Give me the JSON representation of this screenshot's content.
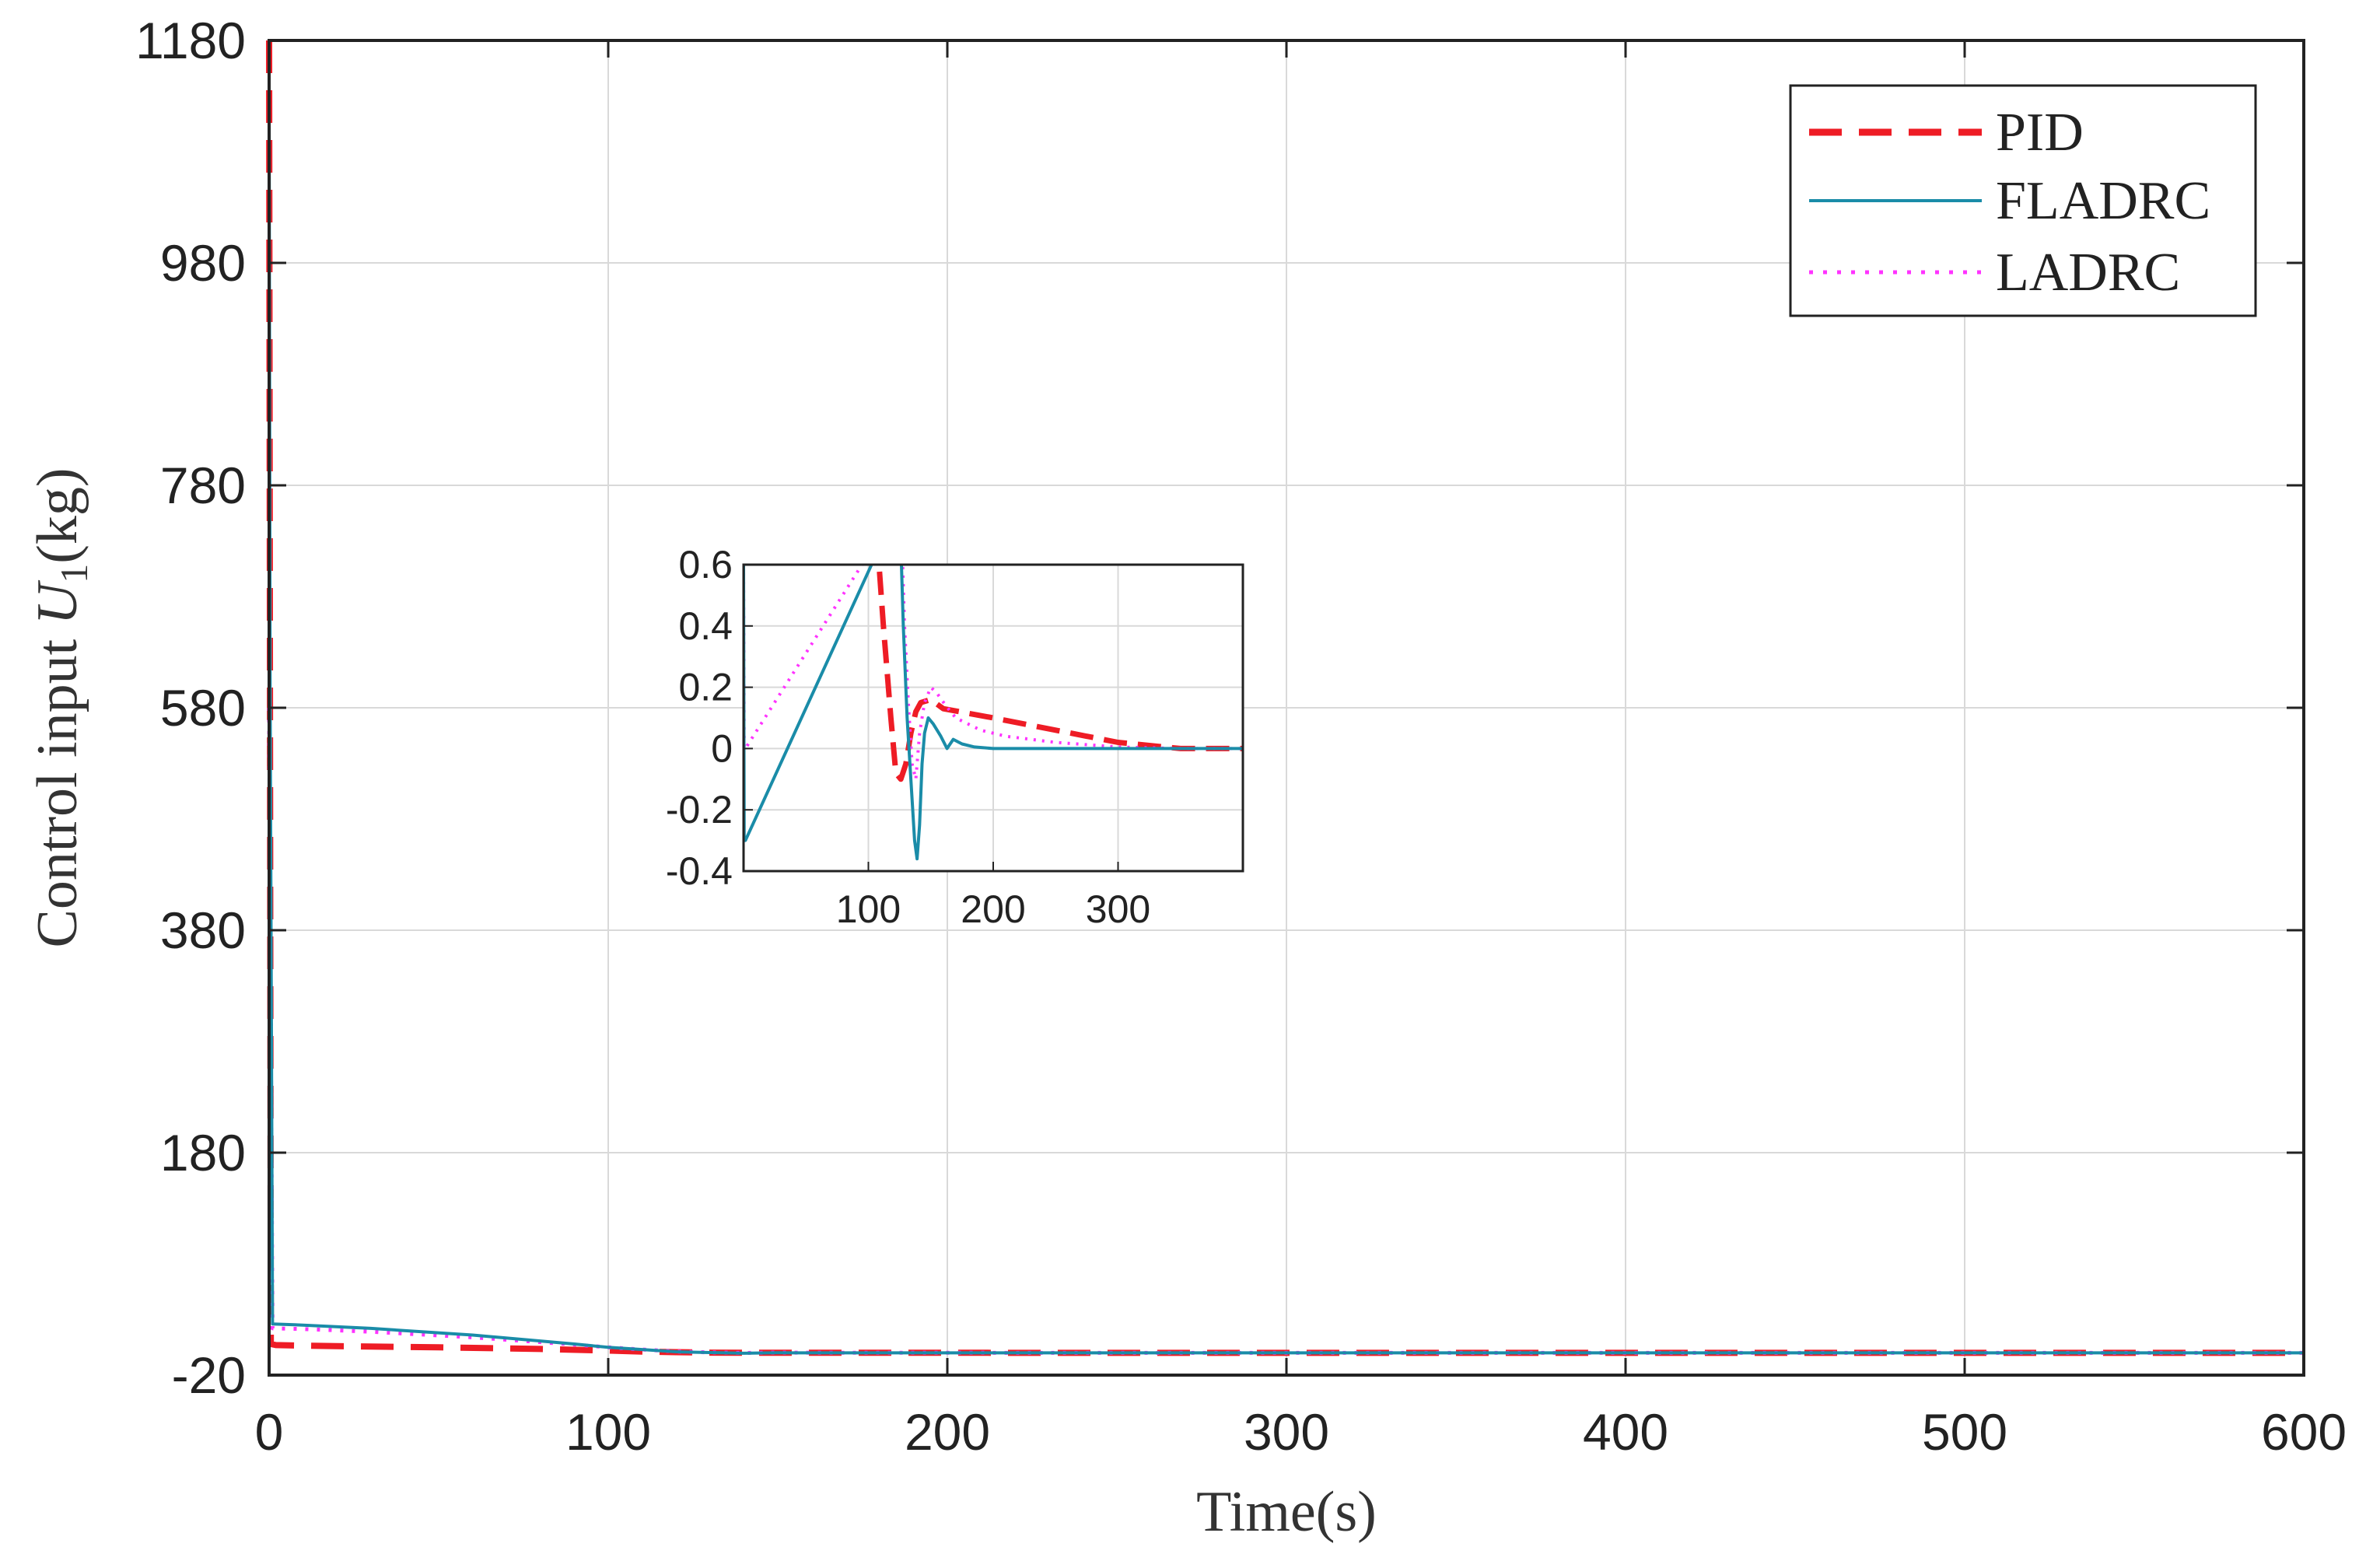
{
  "chart_data": {
    "type": "line",
    "xlabel": "Time(s)",
    "ylabel_prefix": "Control input ",
    "ylabel_var": "U",
    "ylabel_sub": "1",
    "ylabel_suffix": "(kg)",
    "xlim": [
      0,
      600
    ],
    "ylim": [
      -20,
      1180
    ],
    "xticks": [
      "0",
      "100",
      "200",
      "300",
      "400",
      "500",
      "600"
    ],
    "yticks": [
      "-20",
      "180",
      "380",
      "580",
      "780",
      "980",
      "1180"
    ],
    "grid": true,
    "legend_position": "top-right",
    "series": [
      {
        "name": "PID",
        "color": "#ee1c25",
        "style": "dashed",
        "x": [
          0,
          0.5,
          2,
          20,
          50,
          80,
          100,
          110,
          120,
          130,
          140,
          150,
          200,
          300,
          400,
          500,
          600
        ],
        "y": [
          1180,
          8,
          7,
          6,
          5,
          3.5,
          2,
          1.2,
          0.6,
          0.2,
          0.1,
          0.08,
          0.06,
          0.02,
          0,
          0,
          0
        ]
      },
      {
        "name": "FLADRC",
        "color": "#1a8ca8",
        "style": "solid",
        "x": [
          0,
          0.3,
          1,
          10,
          30,
          60,
          90,
          100,
          110,
          120,
          130,
          140,
          150,
          170,
          200,
          300,
          400,
          500,
          600
        ],
        "y": [
          1130,
          600,
          26,
          25,
          22,
          16,
          8,
          5,
          3,
          1,
          0.3,
          -0.35,
          0.1,
          0.02,
          0,
          0,
          0,
          0,
          0
        ]
      },
      {
        "name": "LADRC",
        "color": "#ff33ff",
        "style": "dotted",
        "x": [
          0,
          0.3,
          1,
          10,
          30,
          60,
          90,
          100,
          110,
          120,
          130,
          140,
          150,
          170,
          200,
          300,
          400,
          500,
          600
        ],
        "y": [
          580,
          400,
          22,
          21.5,
          19,
          14,
          7.5,
          5,
          3,
          1.2,
          0.4,
          -0.1,
          0.2,
          0.08,
          0.04,
          0.01,
          0,
          0,
          0
        ]
      }
    ],
    "inset": {
      "xlim": [
        0,
        400
      ],
      "ylim": [
        -0.4,
        0.6
      ],
      "xticks": [
        "100",
        "200",
        "300"
      ],
      "yticks": [
        "-0.4",
        "-0.2",
        "0",
        "0.2",
        "0.4",
        "0.6"
      ],
      "grid": true,
      "series": [
        {
          "name": "PID",
          "x": [
            105,
            112,
            118,
            122,
            126,
            130,
            134,
            138,
            142,
            150,
            160,
            200,
            250,
            300,
            350,
            400
          ],
          "y": [
            0.8,
            0.4,
            0.1,
            -0.08,
            -0.1,
            -0.05,
            0.05,
            0.12,
            0.15,
            0.16,
            0.13,
            0.1,
            0.06,
            0.02,
            0,
            0
          ]
        },
        {
          "name": "FLADRC",
          "x": [
            0,
            0.5,
            1.5,
            125,
            128,
            131,
            134,
            137,
            139,
            141,
            143,
            145,
            148,
            152,
            158,
            163,
            168,
            175,
            185,
            200,
            250,
            300,
            350,
            400
          ],
          "y": [
            0.6,
            -0.3,
            -0.3,
            0.8,
            0.4,
            0.1,
            -0.1,
            -0.3,
            -0.36,
            -0.25,
            -0.05,
            0.05,
            0.1,
            0.08,
            0.04,
            0.0,
            0.03,
            0.015,
            0.005,
            0,
            0,
            0,
            0,
            0
          ]
        },
        {
          "name": "LADRC",
          "x": [
            0,
            0.5,
            1.5,
            126,
            129,
            132,
            135,
            138,
            141,
            145,
            150,
            155,
            162,
            170,
            190,
            210,
            250,
            300,
            350,
            400
          ],
          "y": [
            0.6,
            0.0,
            0.0,
            0.8,
            0.4,
            0.15,
            -0.05,
            -0.1,
            0.05,
            0.15,
            0.2,
            0.18,
            0.14,
            0.1,
            0.06,
            0.04,
            0.02,
            0.005,
            0,
            0
          ]
        }
      ]
    }
  }
}
